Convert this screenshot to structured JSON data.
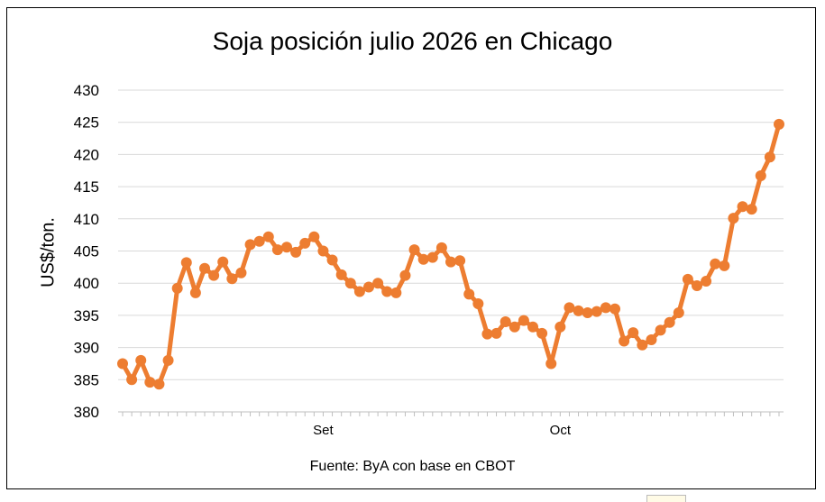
{
  "chart_data": {
    "type": "line",
    "title": "Soja posición julio 2026 en Chicago",
    "ylabel": "US$/ton.",
    "xlabel": "",
    "source_note": "Fuente: ByA con base en CBOT",
    "ylim": [
      380,
      430
    ],
    "yticks": [
      380,
      385,
      390,
      395,
      400,
      405,
      410,
      415,
      420,
      425,
      430
    ],
    "grid": true,
    "legend": "none",
    "x_labels": [
      {
        "index": 22,
        "label": "Set"
      },
      {
        "index": 48,
        "label": "Oct"
      }
    ],
    "series": [
      {
        "color": "#ED7D31",
        "values": [
          387.5,
          385,
          388,
          384.6,
          384.3,
          388,
          399.2,
          403.2,
          398.5,
          402.3,
          401.2,
          403.3,
          400.7,
          401.6,
          406,
          406.5,
          407.2,
          405.2,
          405.6,
          404.8,
          406.2,
          407.2,
          405,
          403.6,
          401.3,
          400,
          398.7,
          399.4,
          400,
          398.7,
          398.5,
          401.2,
          405.2,
          403.7,
          404,
          405.5,
          403.3,
          403.5,
          398.3,
          396.8,
          392.1,
          392.2,
          394,
          393.2,
          394.2,
          393.2,
          392.2,
          387.5,
          393.2,
          396.2,
          395.7,
          395.4,
          395.6,
          396.2,
          396,
          391,
          392.3,
          390.4,
          391.2,
          392.7,
          393.9,
          395.4,
          400.6,
          399.6,
          400.3,
          403,
          402.7,
          410.1,
          411.9,
          411.5,
          416.7,
          419.6,
          424.7
        ]
      }
    ]
  }
}
